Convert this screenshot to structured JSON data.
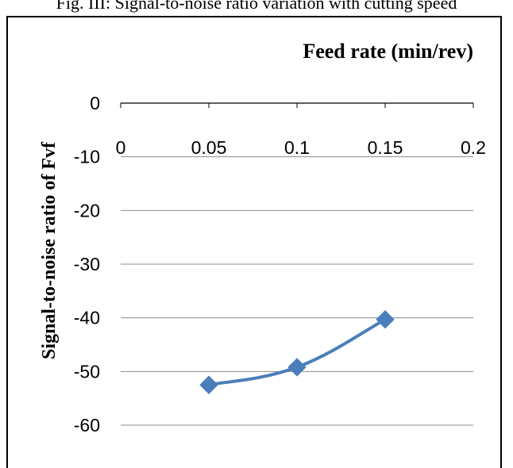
{
  "figure": {
    "caption": "Fig. III: Signal-to-noise ratio variation with cutting speed"
  },
  "chart_data": {
    "type": "line",
    "xlabel": "Feed rate (min/rev)",
    "ylabel": "Signal-to-noise ratio of Fvf",
    "xlim": [
      0,
      0.2
    ],
    "ylim": [
      -60,
      0
    ],
    "x_ticks": [
      0,
      0.05,
      0.1,
      0.15,
      0.2
    ],
    "x_tick_labels": [
      "0",
      "0.05",
      "0.1",
      "0.15",
      "0.2"
    ],
    "y_ticks": [
      0,
      -10,
      -20,
      -30,
      -40,
      -50,
      -60
    ],
    "y_tick_labels": [
      "0",
      "-10",
      "-20",
      "-30",
      "-40",
      "-50",
      "-60"
    ],
    "x_axis_position": "top",
    "grid": "horizontal",
    "legend": "none",
    "series": [
      {
        "x": [
          0.05,
          0.1,
          0.15
        ],
        "values": [
          -52.5,
          -49.2,
          -40.3
        ],
        "color": "#4a7ebb",
        "marker": "diamond",
        "smooth": true
      }
    ]
  }
}
